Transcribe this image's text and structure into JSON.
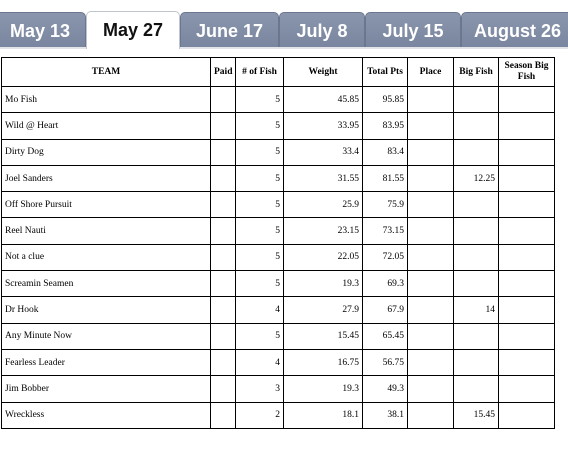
{
  "tabs": [
    {
      "label": "May 13",
      "active": false
    },
    {
      "label": "May 27",
      "active": true
    },
    {
      "label": "June 17",
      "active": false
    },
    {
      "label": "July 8",
      "active": false
    },
    {
      "label": "July 15",
      "active": false
    },
    {
      "label": "August 26",
      "active": false
    }
  ],
  "table": {
    "headers": {
      "team": "TEAM",
      "paid": "Paid",
      "fish": "# of Fish",
      "weight": "Weight",
      "total": "Total Pts",
      "place": "Place",
      "bigfish": "Big Fish",
      "season": "Season Big Fish"
    },
    "rows": [
      {
        "team": "Mo Fish",
        "paid": "",
        "fish": "5",
        "weight": "45.85",
        "total": "95.85",
        "place": "",
        "bigfish": "",
        "season": ""
      },
      {
        "team": "Wild @ Heart",
        "paid": "",
        "fish": "5",
        "weight": "33.95",
        "total": "83.95",
        "place": "",
        "bigfish": "",
        "season": ""
      },
      {
        "team": "Dirty Dog",
        "paid": "",
        "fish": "5",
        "weight": "33.4",
        "total": "83.4",
        "place": "",
        "bigfish": "",
        "season": ""
      },
      {
        "team": "Joel Sanders",
        "paid": "",
        "fish": "5",
        "weight": "31.55",
        "total": "81.55",
        "place": "",
        "bigfish": "12.25",
        "season": ""
      },
      {
        "team": "Off Shore Pursuit",
        "paid": "",
        "fish": "5",
        "weight": "25.9",
        "total": "75.9",
        "place": "",
        "bigfish": "",
        "season": ""
      },
      {
        "team": "Reel Nauti",
        "paid": "",
        "fish": "5",
        "weight": "23.15",
        "total": "73.15",
        "place": "",
        "bigfish": "",
        "season": ""
      },
      {
        "team": "Not a clue",
        "paid": "",
        "fish": "5",
        "weight": "22.05",
        "total": "72.05",
        "place": "",
        "bigfish": "",
        "season": ""
      },
      {
        "team": "Screamin Seamen",
        "paid": "",
        "fish": "5",
        "weight": "19.3",
        "total": "69.3",
        "place": "",
        "bigfish": "",
        "season": ""
      },
      {
        "team": "Dr Hook",
        "paid": "",
        "fish": "4",
        "weight": "27.9",
        "total": "67.9",
        "place": "",
        "bigfish": "14",
        "season": ""
      },
      {
        "team": "Any Minute Now",
        "paid": "",
        "fish": "5",
        "weight": "15.45",
        "total": "65.45",
        "place": "",
        "bigfish": "",
        "season": ""
      },
      {
        "team": "Fearless Leader",
        "paid": "",
        "fish": "4",
        "weight": "16.75",
        "total": "56.75",
        "place": "",
        "bigfish": "",
        "season": ""
      },
      {
        "team": "Jim Bobber",
        "paid": "",
        "fish": "3",
        "weight": "19.3",
        "total": "49.3",
        "place": "",
        "bigfish": "",
        "season": ""
      },
      {
        "team": "Wreckless",
        "paid": "",
        "fish": "2",
        "weight": "18.1",
        "total": "38.1",
        "place": "",
        "bigfish": "15.45",
        "season": ""
      }
    ]
  }
}
